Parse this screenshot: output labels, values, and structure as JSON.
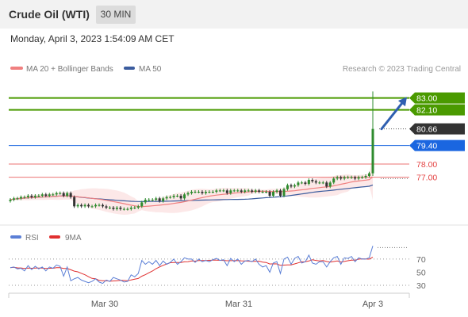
{
  "header": {
    "title": "Crude Oil (WTI)",
    "timeframe": "30 MIN"
  },
  "datetime": "Monday, April 3, 2023 1:54:09 AM CET",
  "legend": {
    "bb_label": "MA 20 + Bollinger Bands",
    "ma50_label": "MA 50",
    "credit": "Research © 2023 Trading Central"
  },
  "rsi_legend": {
    "rsi_label": "RSI",
    "ma9_label": "9MA"
  },
  "colors": {
    "resistance": "#4a9a00",
    "pivot": "#1a66e0",
    "support": "#e44444",
    "last": "#333333",
    "ma50": "#3b5c9e",
    "bb": "#f08080",
    "rsi": "#5b7fd6",
    "rsi_ma": "#e03030"
  },
  "chart_data": [
    {
      "type": "candlestick",
      "x_ticks": [
        "Mar 30",
        "Mar 31",
        "Apr 3"
      ],
      "ylim": [
        73.5,
        84.3
      ],
      "closes": [
        75.3,
        75.4,
        75.4,
        75.5,
        75.5,
        75.6,
        75.5,
        75.6,
        75.6,
        75.7,
        75.6,
        75.7,
        75.7,
        75.8,
        75.8,
        75.6,
        75.8,
        75.5,
        74.8,
        74.9,
        74.8,
        74.9,
        74.8,
        74.8,
        74.9,
        74.9,
        74.8,
        74.7,
        74.7,
        74.6,
        74.7,
        74.6,
        74.6,
        74.6,
        74.7,
        74.7,
        74.8,
        75.1,
        75.3,
        75.3,
        75.3,
        75.4,
        75.2,
        75.4,
        75.5,
        75.5,
        75.6,
        75.6,
        75.4,
        75.7,
        75.8,
        75.9,
        75.9,
        75.9,
        75.8,
        75.9,
        75.9,
        75.9,
        76.0,
        76.0,
        76.0,
        75.8,
        76.0,
        76.0,
        76.0,
        75.9,
        76.0,
        76.0,
        75.9,
        76.0,
        75.9,
        75.9,
        75.9,
        75.6,
        75.9,
        76.0,
        75.6,
        76.1,
        76.4,
        76.3,
        76.4,
        76.6,
        76.6,
        76.5,
        76.8,
        76.7,
        76.6,
        76.6,
        76.6,
        76.3,
        76.6,
        76.9,
        77.0,
        76.9,
        77.0,
        77.0,
        77.0,
        76.9,
        77.0,
        77.0,
        77.1,
        77.3,
        80.66
      ],
      "high": [
        80.66,
        83.5
      ],
      "levels": [
        {
          "value": "83.00",
          "kind": "resistance"
        },
        {
          "value": "82.10",
          "kind": "resistance"
        },
        {
          "value": "80.66",
          "kind": "last"
        },
        {
          "value": "79.40",
          "kind": "pivot"
        },
        {
          "value": "78.00",
          "kind": "support"
        },
        {
          "value": "77.00",
          "kind": "support"
        }
      ],
      "series": [
        {
          "name": "MA 20 + Bollinger Bands"
        },
        {
          "name": "MA 50"
        }
      ]
    },
    {
      "type": "line",
      "y_ticks": [
        70,
        50,
        30
      ],
      "ylim": [
        18,
        88
      ],
      "rsi": [
        57,
        58,
        55,
        56,
        52,
        60,
        54,
        59,
        55,
        58,
        52,
        58,
        56,
        61,
        59,
        44,
        58,
        37,
        40,
        42,
        38,
        36,
        34,
        36,
        40,
        35,
        33,
        38,
        36,
        42,
        40,
        38,
        35,
        36,
        46,
        43,
        48,
        68,
        62,
        66,
        62,
        68,
        60,
        67,
        62,
        65,
        70,
        62,
        66,
        72,
        70,
        70,
        65,
        70,
        66,
        68,
        66,
        69,
        71,
        68,
        69,
        60,
        71,
        66,
        70,
        62,
        67,
        68,
        66,
        70,
        62,
        58,
        60,
        50,
        64,
        66,
        48,
        70,
        73,
        62,
        71,
        74,
        64,
        66,
        76,
        64,
        62,
        66,
        66,
        58,
        66,
        72,
        74,
        62,
        72,
        71,
        74,
        66,
        72,
        70,
        70,
        72,
        90
      ]
    }
  ]
}
